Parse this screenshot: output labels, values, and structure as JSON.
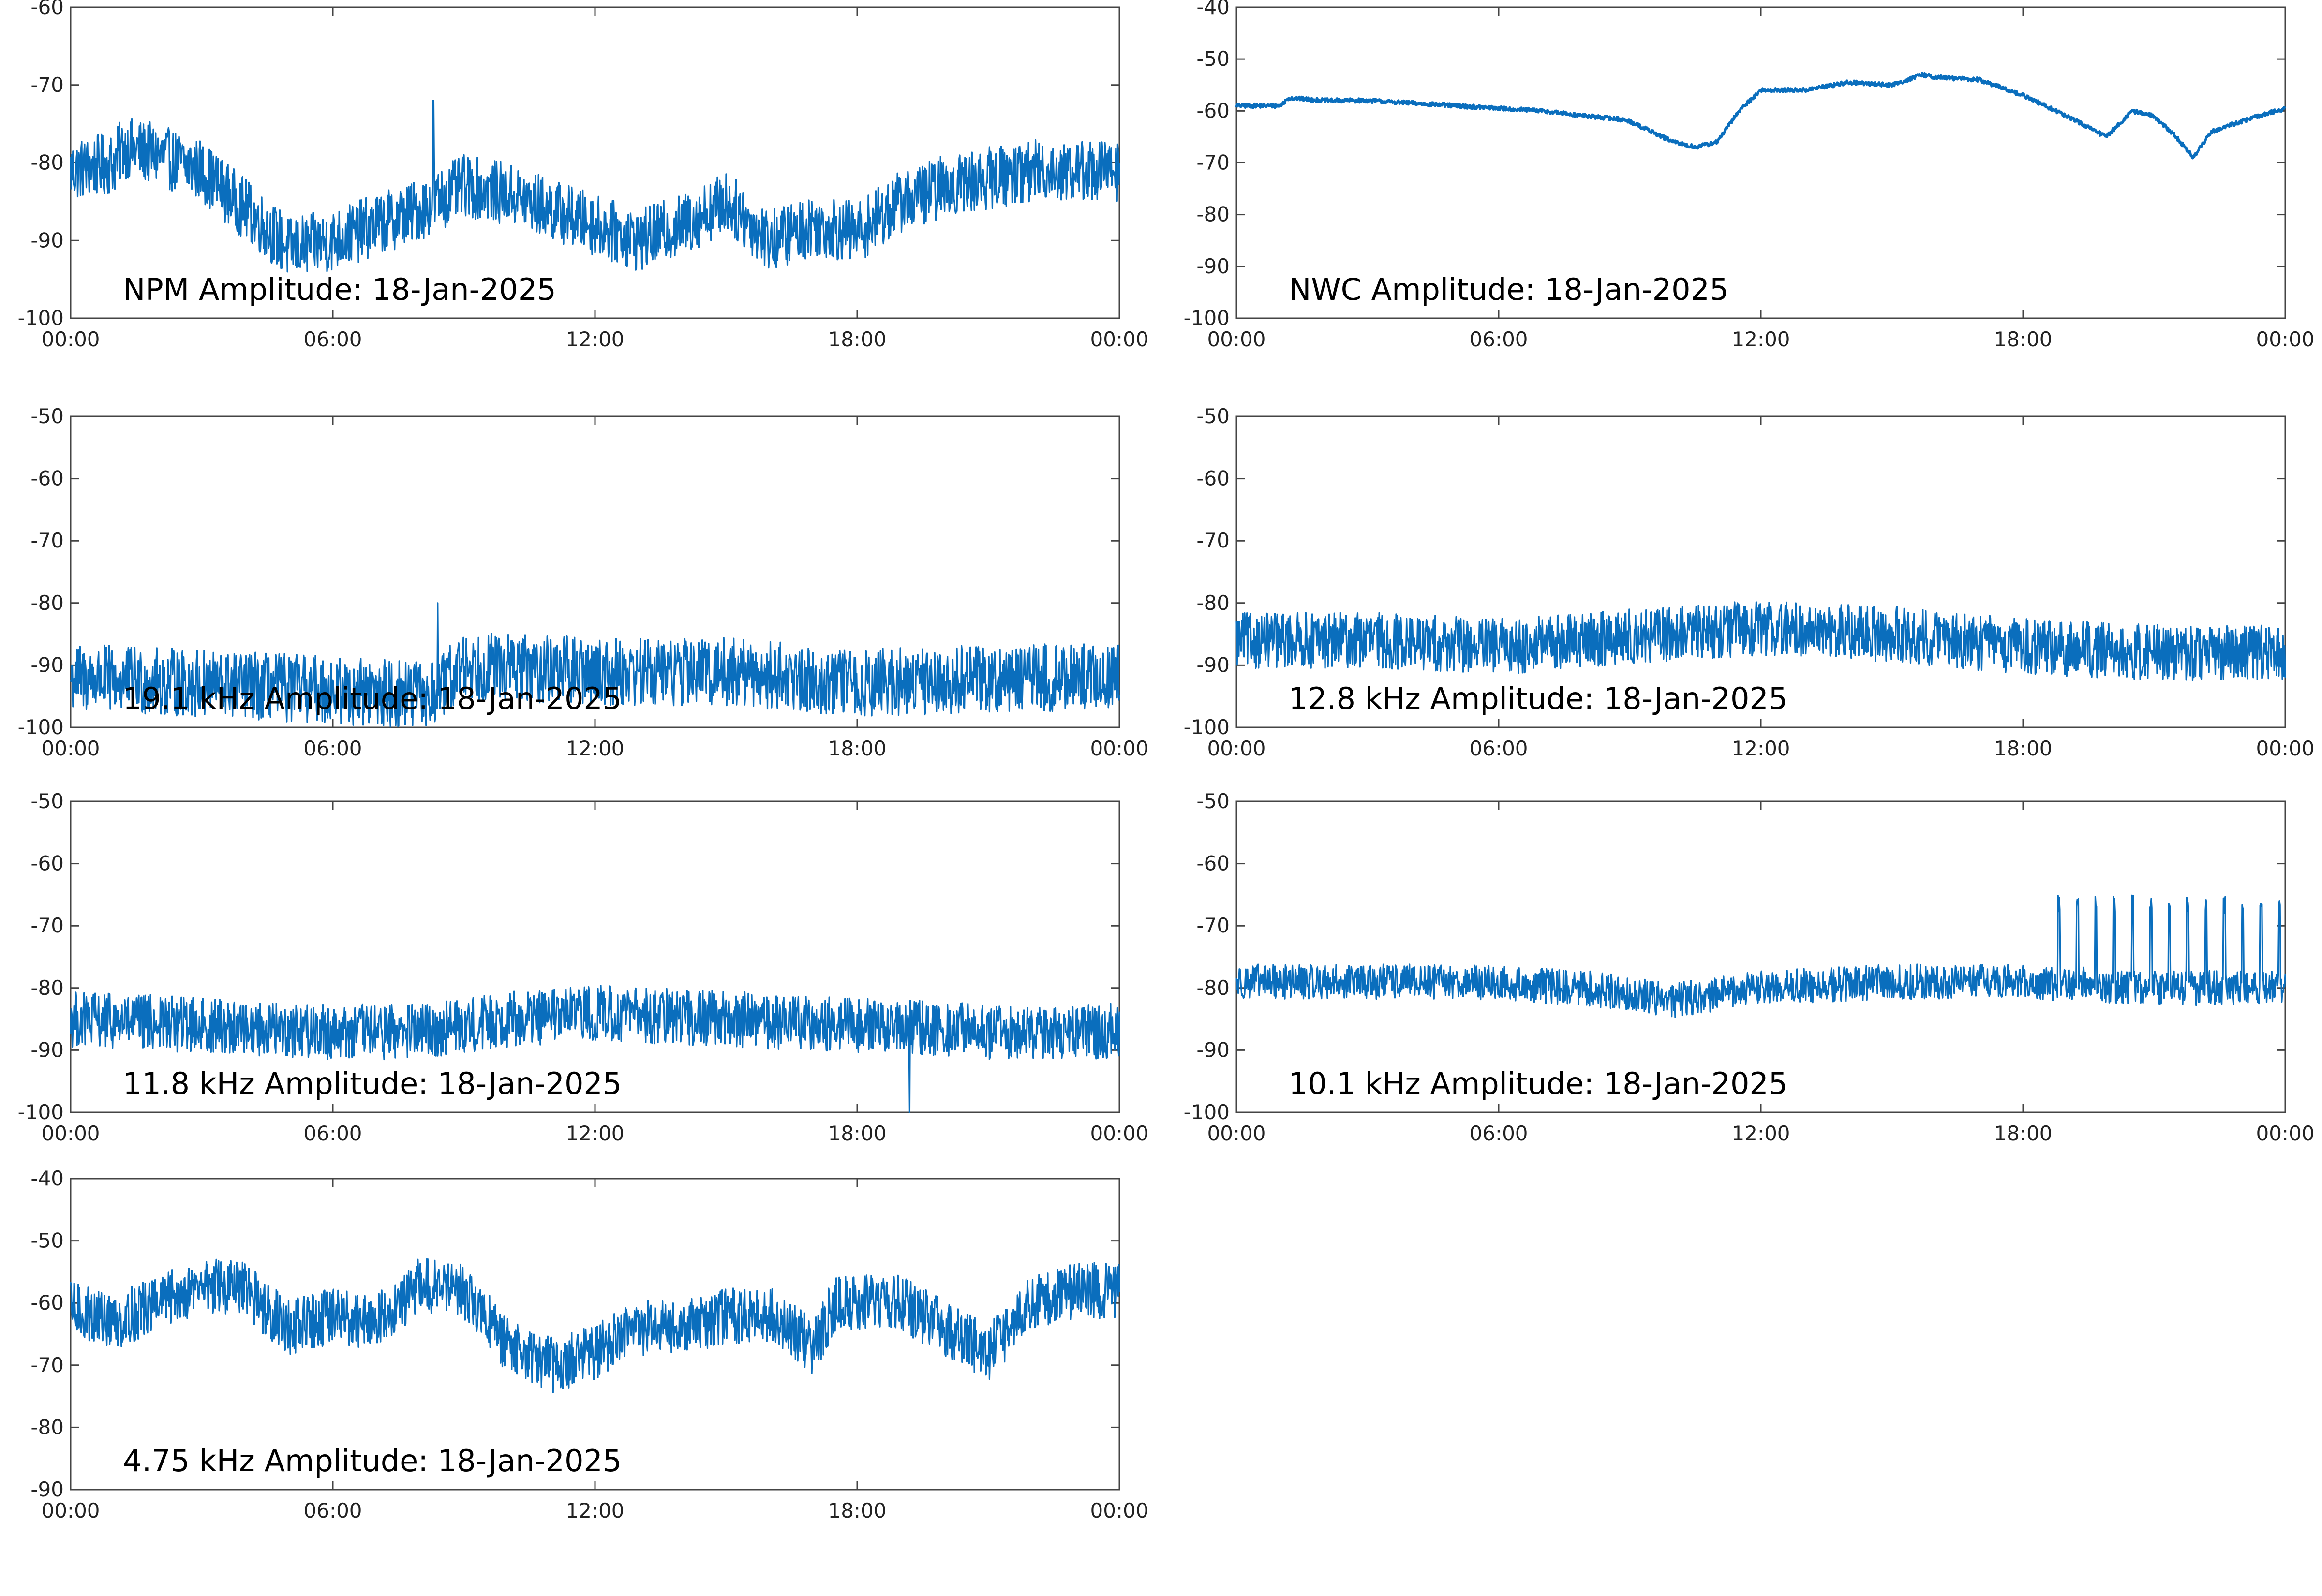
{
  "chart_data": [
    {
      "type": "line",
      "label": "NPM Amplitude: 18-Jan-2025",
      "xticks": [
        "00:00",
        "06:00",
        "12:00",
        "18:00",
        "00:00"
      ],
      "ylim": [
        -100,
        -60
      ],
      "yticks": [
        "-60",
        "-70",
        "-80",
        "-90",
        "-100"
      ],
      "color": "#0a6ebd",
      "noise": 4.0,
      "spike": {
        "x": 8.3,
        "y": -72
      },
      "profile": [
        [
          0,
          -81
        ],
        [
          1,
          -80
        ],
        [
          1.2,
          -78
        ],
        [
          2,
          -79
        ],
        [
          3,
          -81
        ],
        [
          4,
          -86
        ],
        [
          5,
          -91
        ],
        [
          6,
          -90
        ],
        [
          7,
          -88
        ],
        [
          8,
          -86
        ],
        [
          9,
          -83
        ],
        [
          10,
          -84
        ],
        [
          11,
          -86
        ],
        [
          12,
          -88
        ],
        [
          13,
          -90
        ],
        [
          14,
          -88
        ],
        [
          15,
          -85
        ],
        [
          16,
          -90
        ],
        [
          17,
          -88
        ],
        [
          18,
          -89
        ],
        [
          19,
          -85
        ],
        [
          20,
          -83
        ],
        [
          21,
          -82
        ],
        [
          22,
          -81
        ],
        [
          23,
          -81
        ],
        [
          24,
          -81
        ]
      ]
    },
    {
      "type": "line",
      "label": "NWC Amplitude: 18-Jan-2025",
      "xticks": [
        "00:00",
        "06:00",
        "12:00",
        "18:00",
        "00:00"
      ],
      "ylim": [
        -100,
        -40
      ],
      "yticks": [
        "-40",
        "-50",
        "-60",
        "-70",
        "-80",
        "-90",
        "-100"
      ],
      "color": "#0a6ebd",
      "noise": 0.4,
      "profile": [
        [
          0,
          -59
        ],
        [
          1,
          -59
        ],
        [
          1.2,
          -57.5
        ],
        [
          2,
          -58
        ],
        [
          3,
          -58
        ],
        [
          4,
          -58.5
        ],
        [
          5,
          -59
        ],
        [
          6,
          -59.5
        ],
        [
          7,
          -60
        ],
        [
          8,
          -61
        ],
        [
          8.7,
          -61.5
        ],
        [
          9,
          -62
        ],
        [
          10,
          -66
        ],
        [
          10.5,
          -67
        ],
        [
          11,
          -66
        ],
        [
          11.5,
          -60
        ],
        [
          12,
          -56
        ],
        [
          13,
          -56
        ],
        [
          14,
          -54.5
        ],
        [
          15,
          -55
        ],
        [
          15.7,
          -53
        ],
        [
          16,
          -53.5
        ],
        [
          17,
          -54
        ],
        [
          18,
          -57
        ],
        [
          19,
          -61
        ],
        [
          19.9,
          -65
        ],
        [
          20.5,
          -60
        ],
        [
          21,
          -61
        ],
        [
          21.5,
          -65
        ],
        [
          21.9,
          -69
        ],
        [
          22.3,
          -64
        ],
        [
          23,
          -62
        ],
        [
          24,
          -59.5
        ]
      ]
    },
    {
      "type": "line",
      "label": "19.1 kHz Amplitude: 18-Jan-2025",
      "xticks": [
        "00:00",
        "06:00",
        "12:00",
        "18:00",
        "00:00"
      ],
      "ylim": [
        -100,
        -50
      ],
      "yticks": [
        "-50",
        "-60",
        "-70",
        "-80",
        "-90",
        "-100"
      ],
      "color": "#0a6ebd",
      "noise": 5.5,
      "spike": {
        "x": 8.4,
        "y": -80
      },
      "profile": [
        [
          0,
          -92
        ],
        [
          3,
          -93
        ],
        [
          6,
          -94
        ],
        [
          8.3,
          -95
        ],
        [
          9,
          -90
        ],
        [
          12,
          -91
        ],
        [
          15,
          -91
        ],
        [
          18,
          -93
        ],
        [
          21,
          -92
        ],
        [
          24,
          -92
        ]
      ]
    },
    {
      "type": "line",
      "label": "12.8 kHz Amplitude: 18-Jan-2025",
      "xticks": [
        "00:00",
        "06:00",
        "12:00",
        "18:00",
        "00:00"
      ],
      "ylim": [
        -100,
        -50
      ],
      "yticks": [
        "-50",
        "-60",
        "-70",
        "-80",
        "-90",
        "-100"
      ],
      "color": "#0a6ebd",
      "noise": 4.5,
      "profile": [
        [
          0,
          -86
        ],
        [
          3,
          -86
        ],
        [
          6,
          -87
        ],
        [
          8,
          -86
        ],
        [
          10,
          -85
        ],
        [
          12,
          -84
        ],
        [
          15,
          -85
        ],
        [
          18,
          -87
        ],
        [
          21,
          -88
        ],
        [
          24,
          -88
        ]
      ]
    },
    {
      "type": "line",
      "label": "11.8 kHz Amplitude: 18-Jan-2025",
      "xticks": [
        "00:00",
        "06:00",
        "12:00",
        "18:00",
        "00:00"
      ],
      "ylim": [
        -100,
        -50
      ],
      "yticks": [
        "-50",
        "-60",
        "-70",
        "-80",
        "-90",
        "-100"
      ],
      "color": "#0a6ebd",
      "noise": 4.5,
      "spike": {
        "x": 19.2,
        "y": -100
      },
      "profile": [
        [
          0,
          -85
        ],
        [
          3,
          -86
        ],
        [
          6,
          -87
        ],
        [
          8,
          -87
        ],
        [
          10,
          -85
        ],
        [
          12,
          -84
        ],
        [
          15,
          -85
        ],
        [
          18,
          -86
        ],
        [
          21,
          -87
        ],
        [
          24,
          -87
        ]
      ]
    },
    {
      "type": "line",
      "label": "10.1 kHz Amplitude: 18-Jan-2025",
      "xticks": [
        "00:00",
        "06:00",
        "12:00",
        "18:00",
        "00:00"
      ],
      "ylim": [
        -100,
        -50
      ],
      "yticks": [
        "-50",
        "-60",
        "-70",
        "-80",
        "-90",
        "-100"
      ],
      "color": "#0a6ebd",
      "noise": 2.8,
      "bursts": {
        "start": 18.8,
        "end": 24,
        "step": 0.42,
        "peak": -68
      },
      "profile": [
        [
          0,
          -79
        ],
        [
          3,
          -79
        ],
        [
          5,
          -79
        ],
        [
          8,
          -80
        ],
        [
          9,
          -81
        ],
        [
          10,
          -82
        ],
        [
          12,
          -80
        ],
        [
          15,
          -79
        ],
        [
          18,
          -79
        ],
        [
          21,
          -80
        ],
        [
          24,
          -80
        ]
      ]
    },
    {
      "type": "line",
      "label": "4.75 kHz Amplitude: 18-Jan-2025",
      "xticks": [
        "00:00",
        "06:00",
        "12:00",
        "18:00",
        "00:00"
      ],
      "ylim": [
        -90,
        -40
      ],
      "yticks": [
        "-40",
        "-50",
        "-60",
        "-70",
        "-80",
        "-90"
      ],
      "color": "#0a6ebd",
      "noise": 4.5,
      "profile": [
        [
          0,
          -61
        ],
        [
          1,
          -63
        ],
        [
          2,
          -60
        ],
        [
          3,
          -57
        ],
        [
          4,
          -58
        ],
        [
          5,
          -64
        ],
        [
          6,
          -62
        ],
        [
          7,
          -63
        ],
        [
          8,
          -57
        ],
        [
          9,
          -58
        ],
        [
          10,
          -67
        ],
        [
          11,
          -70
        ],
        [
          12,
          -68
        ],
        [
          13,
          -64
        ],
        [
          14,
          -64
        ],
        [
          15,
          -62
        ],
        [
          16,
          -62
        ],
        [
          17,
          -67
        ],
        [
          17.5,
          -60
        ],
        [
          18,
          -60
        ],
        [
          19,
          -60
        ],
        [
          20,
          -64
        ],
        [
          21,
          -68
        ],
        [
          22,
          -60
        ],
        [
          23,
          -58
        ],
        [
          24,
          -58
        ]
      ]
    }
  ]
}
